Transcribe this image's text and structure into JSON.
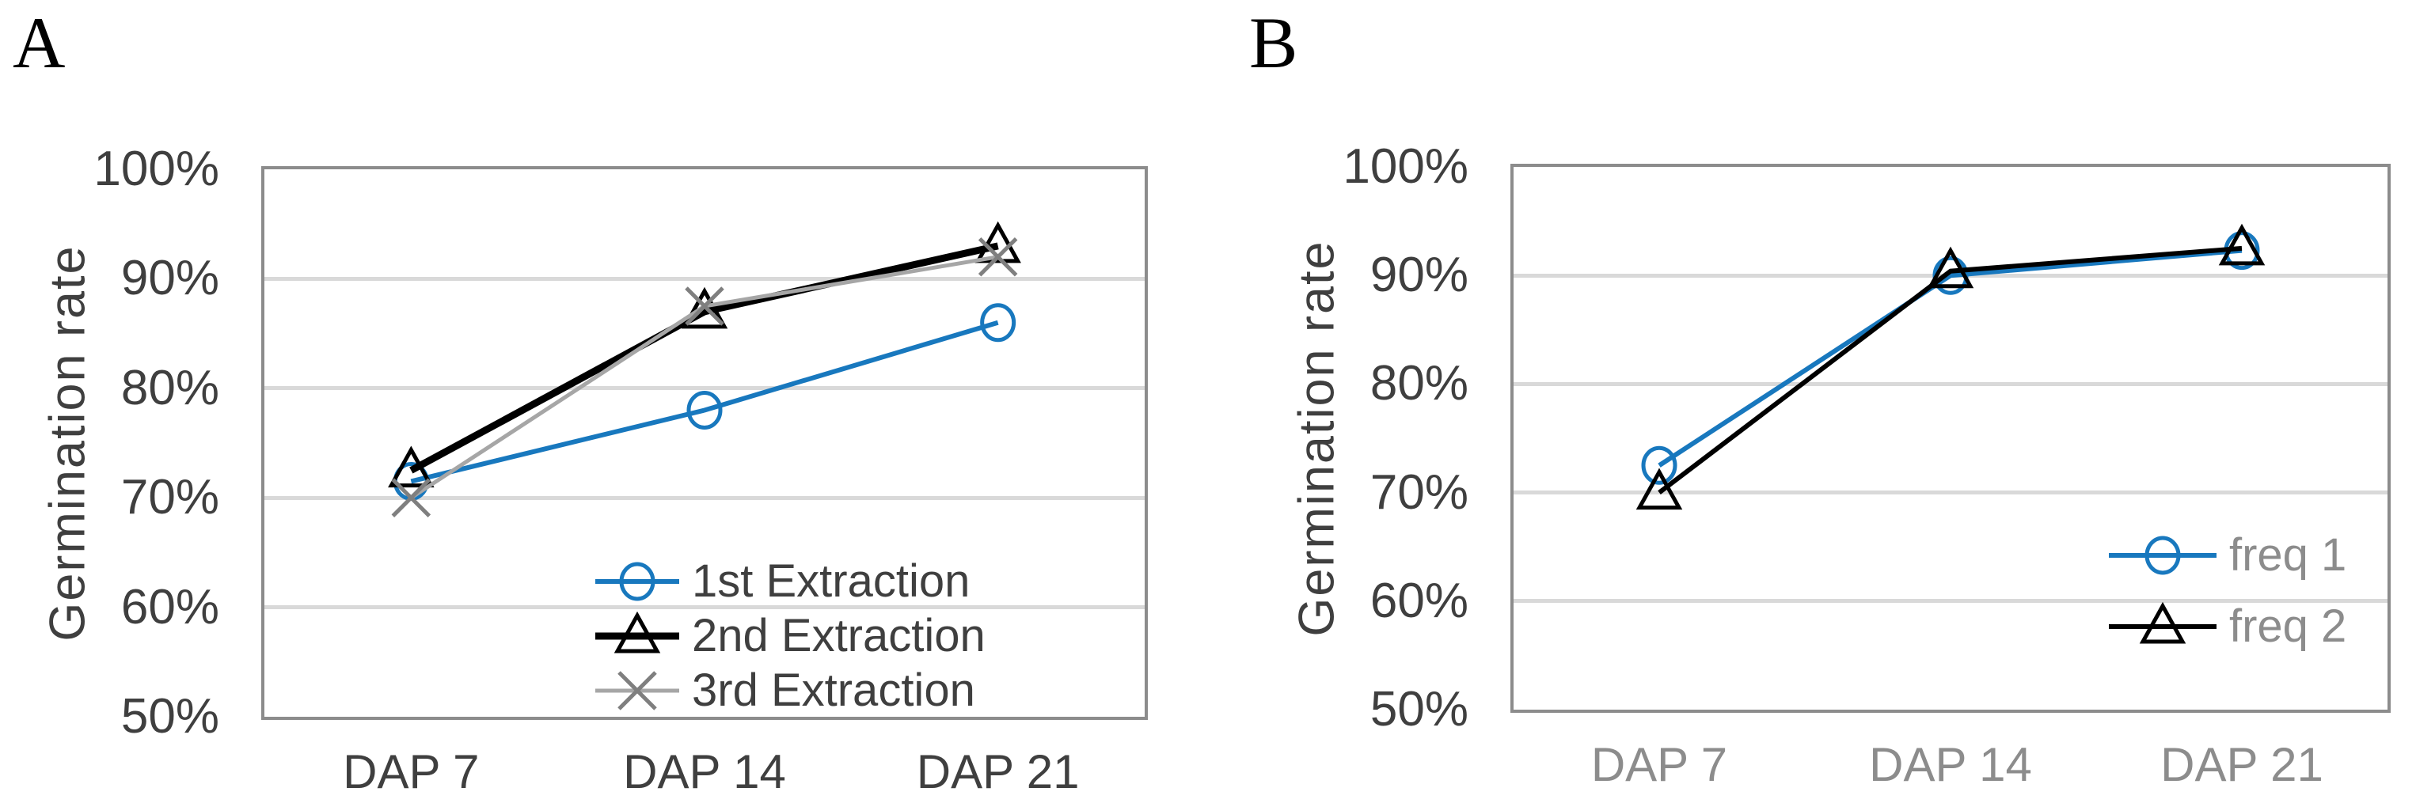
{
  "figure": {
    "background": "#FFFFFF",
    "grid_color": "#D9D9D9",
    "plot_border_color": "#8C8C8C",
    "accent_blue": "#1878BE"
  },
  "chart_data": [
    {
      "type": "line",
      "panel_label": "A",
      "title": "",
      "xlabel": "",
      "ylabel": "Germination rate",
      "categories": [
        "DAP 7",
        "DAP 14",
        "DAP 21"
      ],
      "series": [
        {
          "name": "1st Extraction",
          "values": [
            71.5,
            78,
            86
          ],
          "color": "#1878BE",
          "marker": "circle",
          "marker_color": "#1878BE",
          "line_width": 6
        },
        {
          "name": "2nd Extraction",
          "values": [
            72.5,
            87,
            93
          ],
          "color": "#000000",
          "marker": "triangle",
          "marker_color": "#000000",
          "line_width": 9
        },
        {
          "name": "3rd Extraction",
          "values": [
            70,
            87.5,
            92
          ],
          "color": "#A6A6A6",
          "marker": "x",
          "marker_color": "#7F7F7F",
          "line_width": 5
        }
      ],
      "unit": "%",
      "ylim": [
        50,
        100
      ],
      "ytick_labels": [
        "100%",
        "90%",
        "80%",
        "70%",
        "60%",
        "50%"
      ],
      "ytick_values": [
        100,
        90,
        80,
        70,
        60,
        50
      ],
      "grid": "horizontal",
      "legend_position": "inside-bottom-right",
      "axis_text_color": "#3F3F3F",
      "xtick_color": "#3F3F3F",
      "legend_text_color": "#3F3F3F"
    },
    {
      "type": "line",
      "panel_label": "B",
      "title": "",
      "xlabel": "",
      "ylabel": "Germination rate",
      "categories": [
        "DAP 7",
        "DAP 14",
        "DAP 21"
      ],
      "series": [
        {
          "name": "freq 1",
          "values": [
            72.5,
            90,
            92.3
          ],
          "color": "#1878BE",
          "marker": "circle",
          "marker_color": "#1878BE",
          "line_width": 6
        },
        {
          "name": "freq 2",
          "values": [
            70,
            90.4,
            92.5
          ],
          "color": "#000000",
          "marker": "triangle",
          "marker_color": "#000000",
          "line_width": 6
        }
      ],
      "unit": "%",
      "ylim": [
        50,
        100
      ],
      "ytick_labels": [
        "100%",
        "90%",
        "80%",
        "70%",
        "60%",
        "50%"
      ],
      "ytick_values": [
        100,
        90,
        80,
        70,
        60,
        50
      ],
      "grid": "horizontal",
      "legend_position": "inside-bottom-right",
      "axis_text_color": "#3F3F3F",
      "xtick_color": "#8C8C8C",
      "legend_text_color": "#8C8C8C"
    }
  ]
}
